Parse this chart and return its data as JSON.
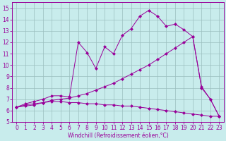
{
  "xlabel": "Windchill (Refroidissement éolien,°C)",
  "bg_color": "#c8ecec",
  "line_color": "#990099",
  "xlim": [
    -0.5,
    23.5
  ],
  "ylim": [
    5,
    15.5
  ],
  "xticks": [
    0,
    1,
    2,
    3,
    4,
    5,
    6,
    7,
    8,
    9,
    10,
    11,
    12,
    13,
    14,
    15,
    16,
    17,
    18,
    19,
    20,
    21,
    22,
    23
  ],
  "yticks": [
    5,
    6,
    7,
    8,
    9,
    10,
    11,
    12,
    13,
    14,
    15
  ],
  "line_jagged_x": [
    0,
    1,
    2,
    3,
    4,
    5,
    6,
    7,
    8,
    9,
    10,
    11,
    12,
    13,
    14,
    15,
    16,
    17,
    18,
    19,
    20,
    21,
    22,
    23
  ],
  "line_jagged_y": [
    6.3,
    6.6,
    6.8,
    7.0,
    7.3,
    7.3,
    7.2,
    12.0,
    11.1,
    9.7,
    11.6,
    11.0,
    12.6,
    13.2,
    14.3,
    14.8,
    14.3,
    13.4,
    13.6,
    13.1,
    12.5,
    8.1,
    7.0,
    5.5
  ],
  "line_diag_x": [
    0,
    1,
    2,
    3,
    4,
    5,
    6,
    7,
    8,
    9,
    10,
    11,
    12,
    13,
    14,
    15,
    16,
    17,
    18,
    19,
    20,
    21,
    22,
    23
  ],
  "line_diag_y": [
    6.3,
    6.4,
    6.5,
    6.7,
    6.9,
    7.0,
    7.1,
    7.3,
    7.5,
    7.8,
    8.1,
    8.4,
    8.8,
    9.2,
    9.6,
    10.0,
    10.5,
    11.0,
    11.5,
    12.0,
    12.5,
    8.0,
    7.0,
    5.5
  ],
  "line_flat_x": [
    0,
    1,
    2,
    3,
    4,
    5,
    6,
    7,
    8,
    9,
    10,
    11,
    12,
    13,
    14,
    15,
    16,
    17,
    18,
    19,
    20,
    21,
    22,
    23
  ],
  "line_flat_y": [
    6.3,
    6.5,
    6.6,
    6.7,
    6.8,
    6.8,
    6.7,
    6.7,
    6.6,
    6.6,
    6.5,
    6.5,
    6.4,
    6.4,
    6.3,
    6.2,
    6.1,
    6.0,
    5.9,
    5.8,
    5.7,
    5.6,
    5.5,
    5.5
  ],
  "grid_color": "#9bbfbf",
  "marker": "D",
  "markersize": 2.0,
  "linewidth": 0.7,
  "tick_fontsize": 5.5,
  "xlabel_fontsize": 5.5
}
